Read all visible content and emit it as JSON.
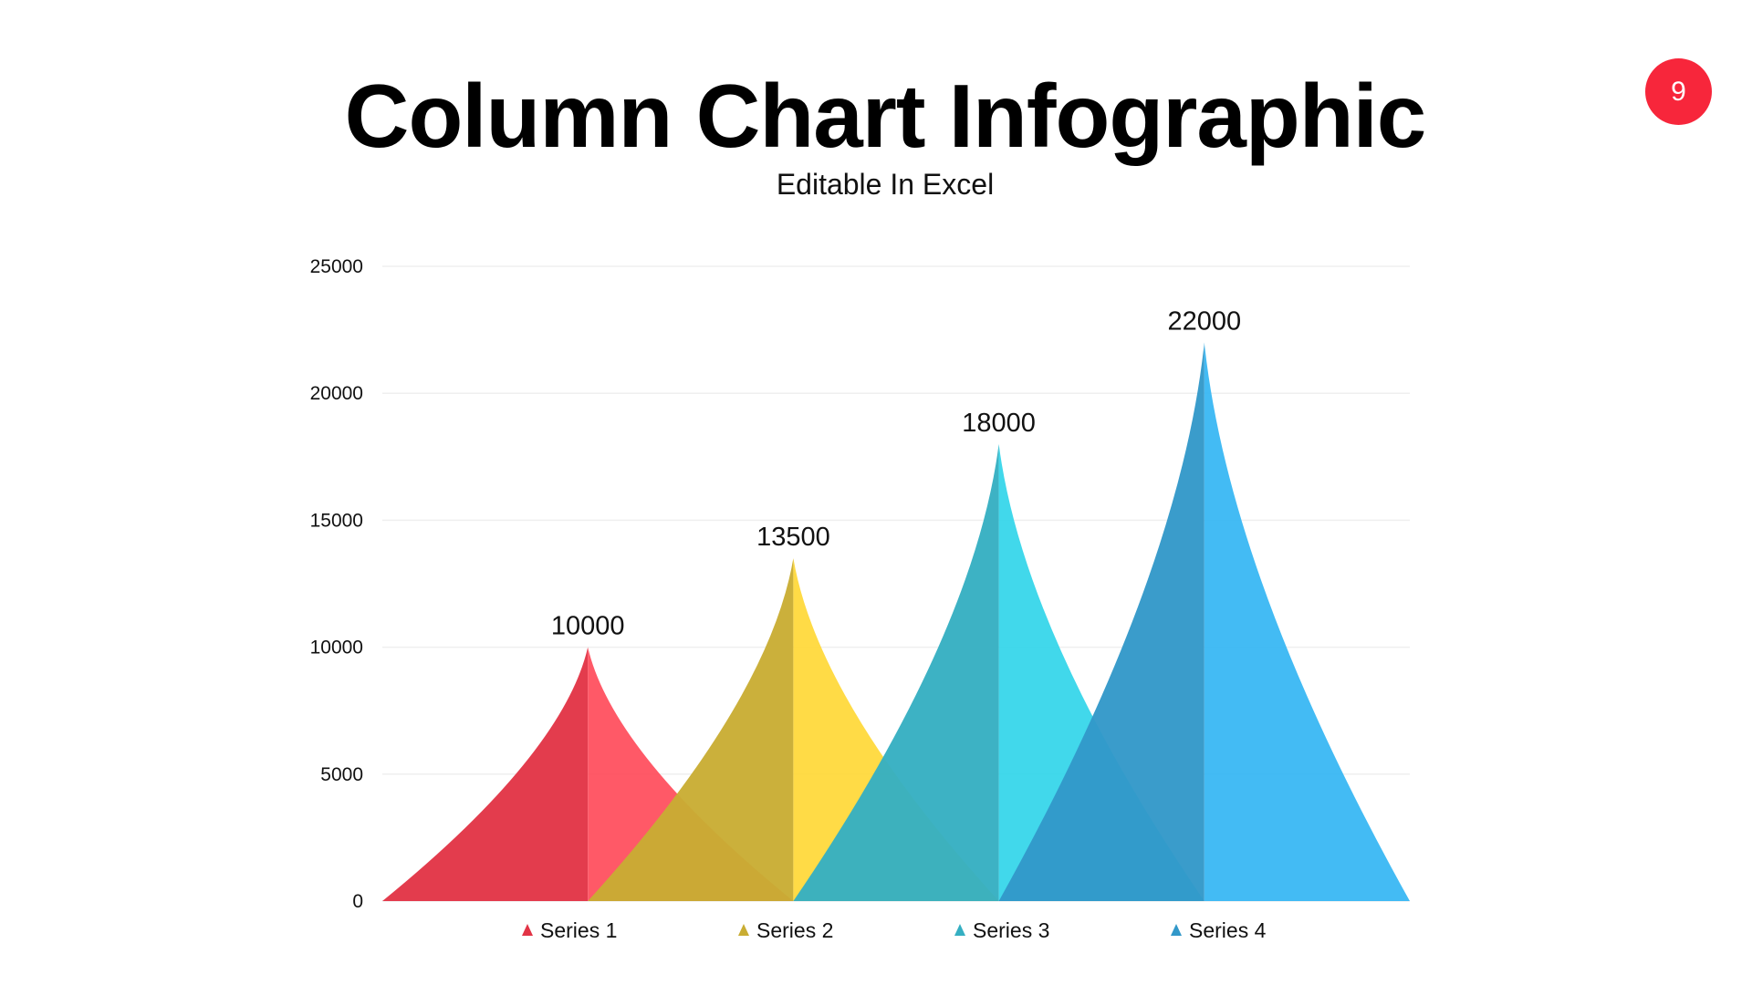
{
  "slide": {
    "title": "Column Chart Infographic",
    "subtitle": "Editable In Excel",
    "page_number": "9",
    "badge_color": "#f7263b"
  },
  "chart_data": {
    "type": "bar",
    "style": "peaked-triangle",
    "title": "",
    "xlabel": "",
    "ylabel": "",
    "ylim": [
      0,
      25000
    ],
    "yticks": [
      0,
      5000,
      10000,
      15000,
      20000,
      25000
    ],
    "grid": true,
    "legend": "bottom",
    "show_data_labels": true,
    "series": [
      {
        "name": "Series 1",
        "value": 10000,
        "label": "10000",
        "color_light": "#ff4f5e",
        "color_dark": "#e23446"
      },
      {
        "name": "Series 2",
        "value": 13500,
        "label": "13500",
        "color_light": "#ffd93a",
        "color_dark": "#c9ad33"
      },
      {
        "name": "Series 3",
        "value": 18000,
        "label": "18000",
        "color_light": "#35d6ea",
        "color_dark": "#35afc2"
      },
      {
        "name": "Series 4",
        "value": 22000,
        "label": "22000",
        "color_light": "#37b7f3",
        "color_dark": "#3298c9"
      }
    ]
  }
}
